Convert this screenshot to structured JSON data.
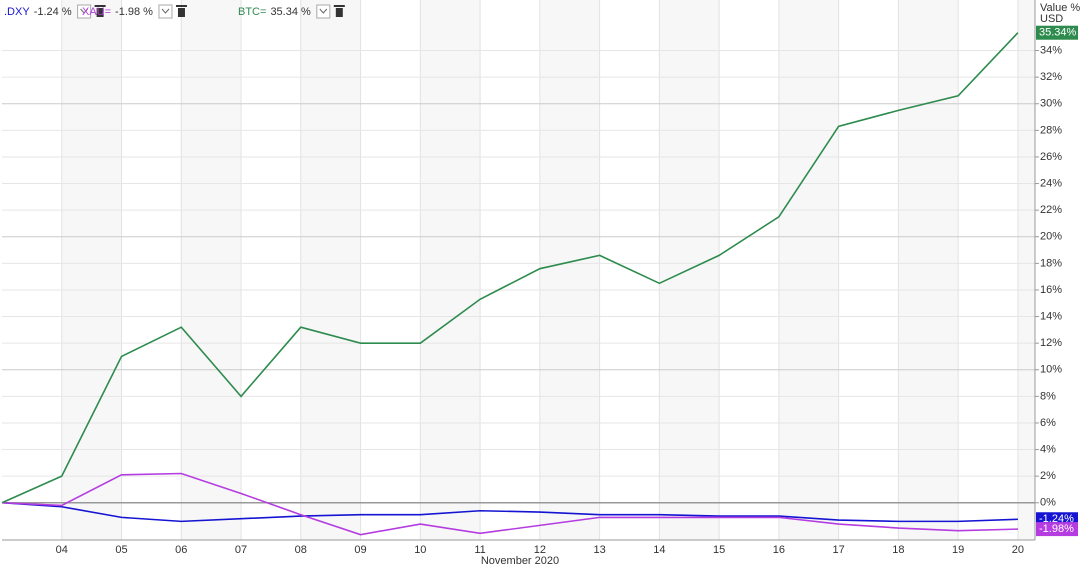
{
  "chart_data": {
    "type": "line",
    "x_label": "November 2020",
    "y_label": "Value %",
    "y_unit": "USD",
    "categories": [
      null,
      "04",
      "05",
      "06",
      "07",
      "08",
      "09",
      "10",
      "11",
      "12",
      "13",
      "14",
      "15",
      "16",
      "17",
      "18",
      "19",
      "20"
    ],
    "series": [
      {
        "name": ".DXY",
        "color": "#1414d2",
        "legend_value": "-1.24 %",
        "axis_tag": "-1.24%",
        "values": [
          0,
          -0.3,
          -1.1,
          -1.4,
          -1.2,
          -1.0,
          -0.9,
          -0.9,
          -0.6,
          -0.7,
          -0.9,
          -0.9,
          -1.0,
          -1.0,
          -1.3,
          -1.4,
          -1.4,
          -1.24
        ]
      },
      {
        "name": "XAU=",
        "color": "#b43ce0",
        "legend_value": "-1.98 %",
        "axis_tag": "-1.98%",
        "values": [
          0,
          -0.2,
          2.1,
          2.2,
          0.7,
          -0.9,
          -2.4,
          -1.6,
          -2.3,
          -1.7,
          -1.1,
          -1.1,
          -1.1,
          -1.1,
          -1.6,
          -1.9,
          -2.1,
          -1.98
        ]
      },
      {
        "name": "BTC=",
        "color": "#2e8b4e",
        "legend_value": "35.34 %",
        "axis_tag": "35.34%",
        "values": [
          0,
          2.0,
          11.0,
          13.2,
          8.0,
          13.2,
          12.0,
          12.0,
          15.3,
          17.6,
          18.6,
          16.5,
          18.6,
          21.5,
          28.3,
          29.5,
          30.6,
          35.34
        ]
      }
    ],
    "ylim": [
      -2.8,
      37.8
    ],
    "yticks": [
      {
        "value": 0,
        "label": "0%"
      },
      {
        "value": 2,
        "label": "2%"
      },
      {
        "value": 4,
        "label": "4%"
      },
      {
        "value": 6,
        "label": "6%"
      },
      {
        "value": 8,
        "label": "8%"
      },
      {
        "value": 10,
        "label": "10%"
      },
      {
        "value": 12,
        "label": "12%"
      },
      {
        "value": 14,
        "label": "14%"
      },
      {
        "value": 16,
        "label": "16%"
      },
      {
        "value": 18,
        "label": "18%"
      },
      {
        "value": 20,
        "label": "20%"
      },
      {
        "value": 22,
        "label": "22%"
      },
      {
        "value": 24,
        "label": "24%"
      },
      {
        "value": 26,
        "label": "26%"
      },
      {
        "value": 28,
        "label": "28%"
      },
      {
        "value": 30,
        "label": "30%"
      },
      {
        "value": 32,
        "label": "32%"
      },
      {
        "value": 34,
        "label": "34%"
      }
    ],
    "grid": true
  }
}
